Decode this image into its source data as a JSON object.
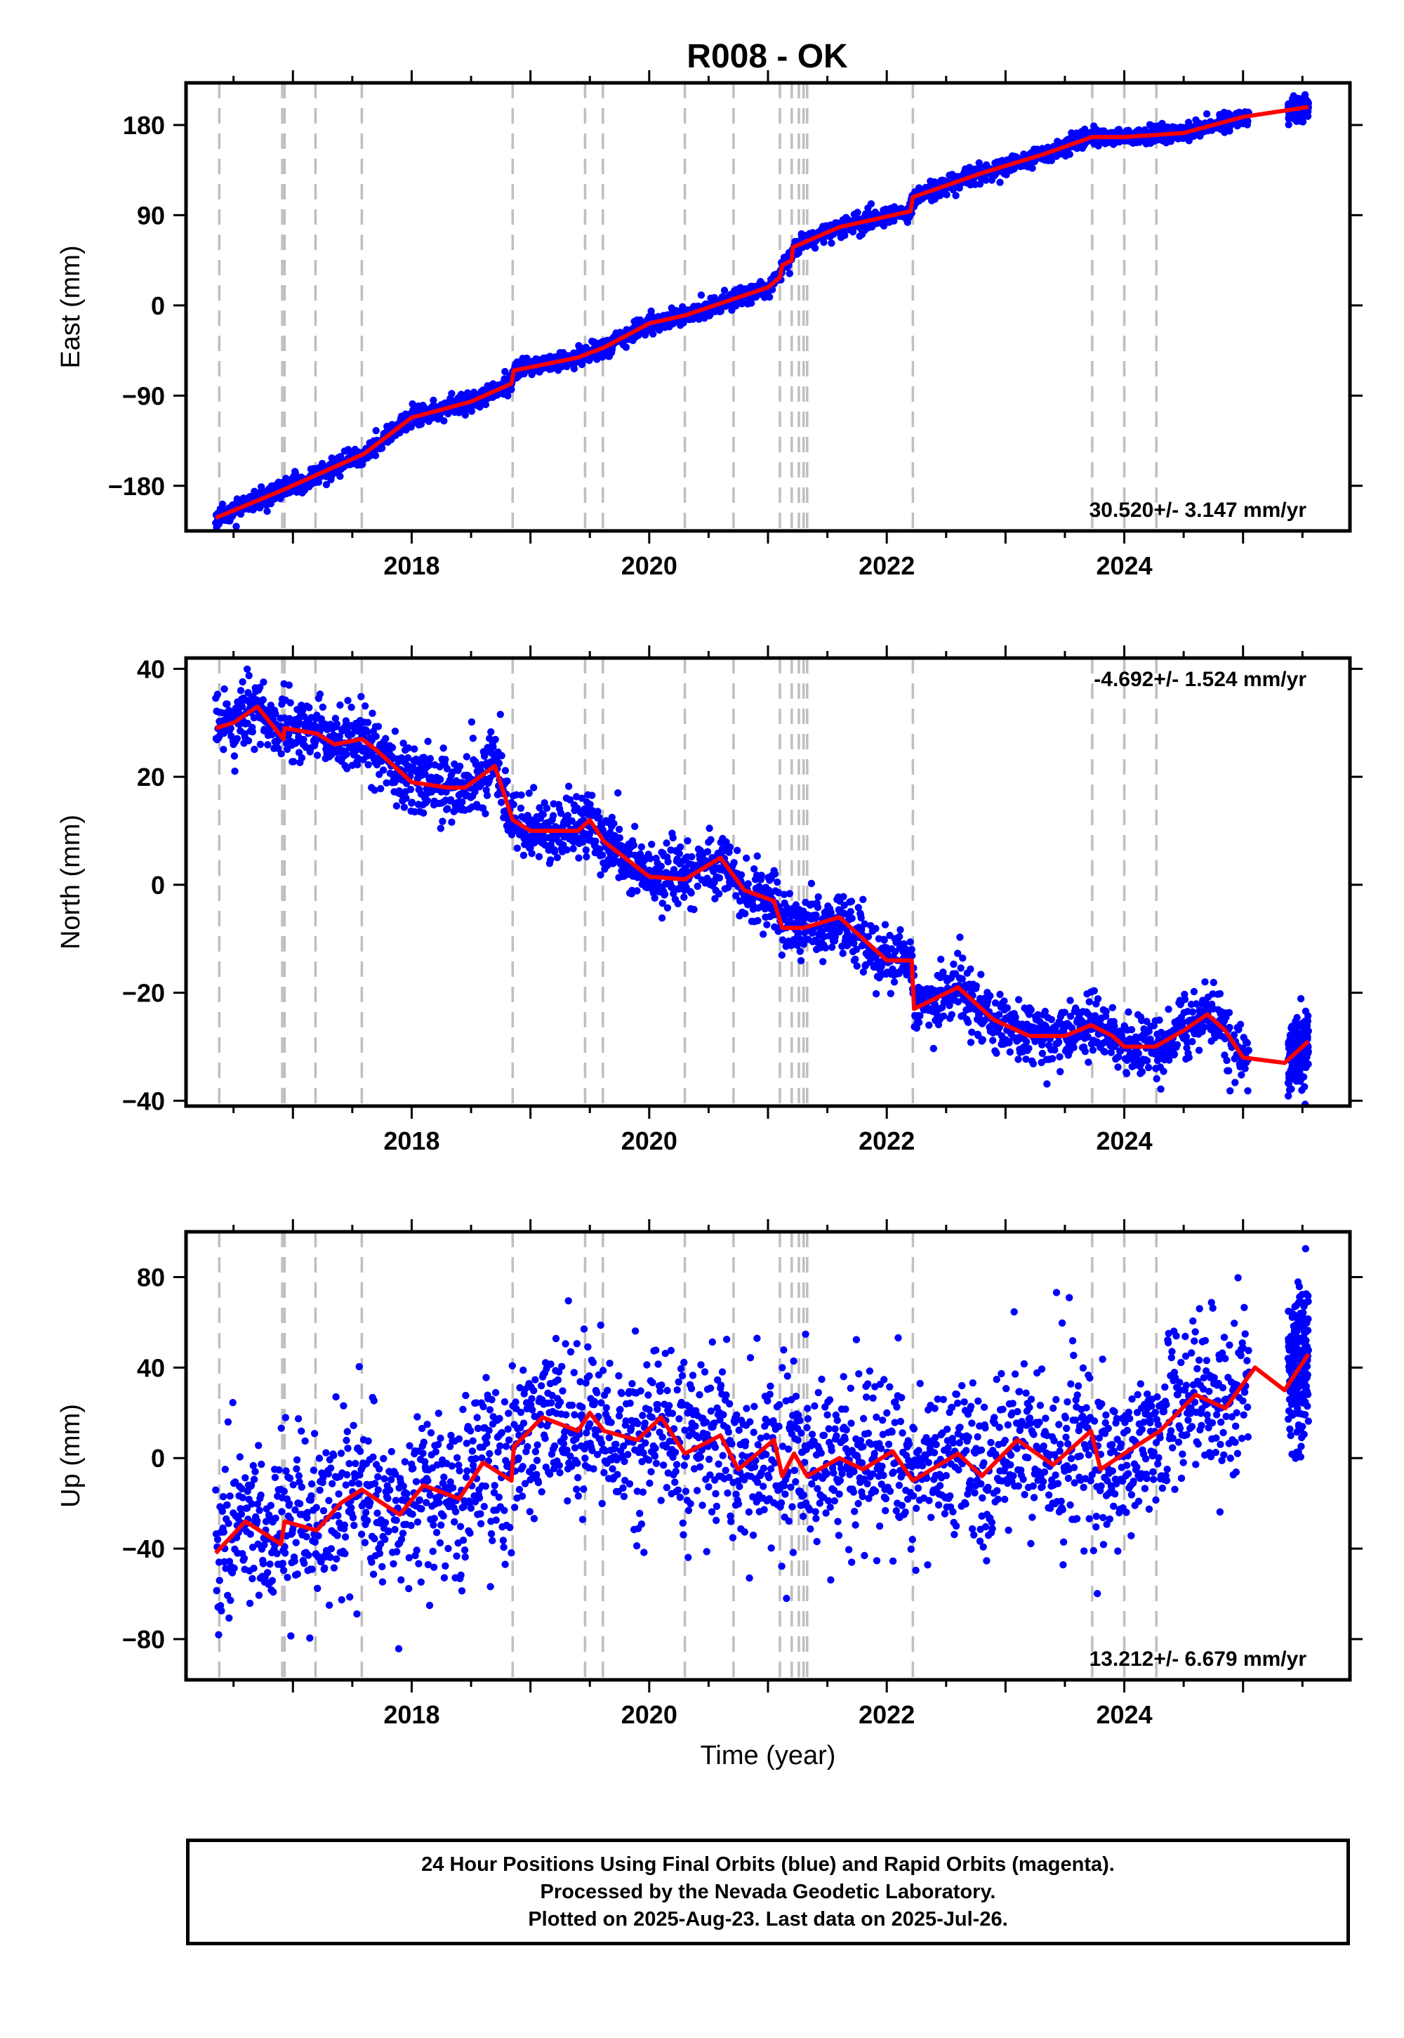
{
  "title": "R008 - OK",
  "footer": {
    "line1": "24 Hour Positions Using Final Orbits (blue) and Rapid Orbits (magenta).",
    "line2": "Processed by the Nevada Geodetic Laboratory.",
    "line3": "Plotted on 2025-Aug-23. Last data on 2025-Jul-26."
  },
  "colors": {
    "data": "#0000ff",
    "model": "#ff0000",
    "event_lines": "#bfbfbf"
  },
  "chart_data": [
    {
      "type": "scatter",
      "panel": "east",
      "ylabel": "East (mm)",
      "xlabel": "",
      "xlim": [
        2016.1,
        2025.9
      ],
      "ylim": [
        -225,
        222
      ],
      "yticks": [
        -180,
        -90,
        0,
        90,
        180
      ],
      "xticks": [
        2018,
        2020,
        2022,
        2024
      ],
      "rate": "30.520+/- 3.147 mm/yr",
      "event_lines": [
        2016.38,
        2016.91,
        2016.93,
        2017.19,
        2017.58,
        2018.85,
        2019.46,
        2019.61,
        2020.3,
        2020.71,
        2021.1,
        2021.2,
        2021.26,
        2021.3,
        2021.33,
        2022.22,
        2023.73,
        2024.0,
        2024.27
      ],
      "model_line": {
        "x": [
          2016.35,
          2016.9,
          2017.6,
          2018.0,
          2018.5,
          2018.84,
          2018.86,
          2019.4,
          2019.62,
          2020.0,
          2020.3,
          2021.0,
          2021.1,
          2021.12,
          2021.2,
          2021.21,
          2021.6,
          2022.2,
          2022.22,
          2022.8,
          2023.3,
          2023.73,
          2024.0,
          2024.5,
          2025.0,
          2025.55
        ],
        "y": [
          -212,
          -185,
          -148,
          -112,
          -96,
          -78,
          -65,
          -52,
          -42,
          -18,
          -10,
          18,
          28,
          40,
          45,
          58,
          78,
          94,
          108,
          132,
          150,
          168,
          168,
          172,
          188,
          198
        ]
      },
      "series": [
        {
          "x": [
            2016.35,
            2016.9,
            2017.6,
            2018.0,
            2018.5,
            2018.84,
            2018.86,
            2019.4,
            2019.62,
            2020.0,
            2020.3,
            2021.0,
            2021.1,
            2021.12,
            2021.2,
            2021.21,
            2021.6,
            2022.2,
            2022.22,
            2022.8,
            2023.3,
            2023.73,
            2024.0,
            2024.5,
            2025.0,
            2025.55
          ],
          "y": [
            -212,
            -185,
            -148,
            -112,
            -96,
            -78,
            -65,
            -52,
            -42,
            -18,
            -10,
            18,
            28,
            40,
            45,
            58,
            78,
            94,
            108,
            132,
            150,
            168,
            168,
            172,
            188,
            198
          ],
          "spread": 4.5,
          "gaps": [
            [
              2025.05,
              2025.38
            ]
          ],
          "count": 2400,
          "seed": 11
        }
      ]
    },
    {
      "type": "scatter",
      "panel": "north",
      "ylabel": "North (mm)",
      "xlabel": "",
      "xlim": [
        2016.1,
        2025.9
      ],
      "ylim": [
        -41,
        42
      ],
      "yticks": [
        -40,
        -20,
        0,
        20,
        40
      ],
      "xticks": [
        2018,
        2020,
        2022,
        2024
      ],
      "rate": "-4.692+/- 1.524 mm/yr",
      "event_lines": [
        2016.38,
        2016.91,
        2016.93,
        2017.19,
        2017.58,
        2018.85,
        2019.46,
        2019.61,
        2020.3,
        2020.71,
        2021.1,
        2021.2,
        2021.26,
        2021.3,
        2021.33,
        2022.22,
        2023.73,
        2024.0,
        2024.27
      ],
      "model_line": {
        "x": [
          2016.35,
          2016.5,
          2016.7,
          2016.92,
          2016.93,
          2017.2,
          2017.35,
          2017.58,
          2017.7,
          2018.0,
          2018.3,
          2018.45,
          2018.7,
          2018.85,
          2019.0,
          2019.4,
          2019.5,
          2019.62,
          2020.0,
          2020.3,
          2020.6,
          2020.8,
          2021.05,
          2021.12,
          2021.3,
          2021.6,
          2021.8,
          2022.0,
          2022.21,
          2022.23,
          2022.6,
          2022.9,
          2023.2,
          2023.5,
          2023.72,
          2023.9,
          2024.0,
          2024.26,
          2024.5,
          2024.7,
          2024.85,
          2025.0,
          2025.35,
          2025.55
        ],
        "y": [
          29,
          30,
          33,
          27,
          29,
          28,
          26,
          27,
          25,
          19,
          18,
          18,
          22,
          12,
          10,
          10,
          12,
          8,
          1.5,
          1,
          5,
          -1,
          -3,
          -8,
          -8,
          -6,
          -10,
          -14,
          -14,
          -23,
          -19,
          -25,
          -28,
          -28,
          -26,
          -28,
          -30,
          -30,
          -27,
          -24,
          -27,
          -32,
          -33,
          -29
        ]
      },
      "series": [
        {
          "x": [
            2016.35,
            2016.5,
            2016.7,
            2016.92,
            2016.93,
            2017.2,
            2017.35,
            2017.58,
            2017.7,
            2018.0,
            2018.3,
            2018.45,
            2018.7,
            2018.85,
            2019.0,
            2019.4,
            2019.5,
            2019.62,
            2020.0,
            2020.3,
            2020.6,
            2020.8,
            2021.05,
            2021.12,
            2021.3,
            2021.6,
            2021.8,
            2022.0,
            2022.21,
            2022.23,
            2022.6,
            2022.9,
            2023.2,
            2023.5,
            2023.72,
            2023.9,
            2024.0,
            2024.26,
            2024.5,
            2024.7,
            2024.85,
            2025.0,
            2025.35,
            2025.55
          ],
          "y": [
            29,
            30,
            33,
            27,
            29,
            28,
            26,
            27,
            25,
            19,
            18,
            18,
            22,
            12,
            10,
            10,
            12,
            8,
            1.5,
            1,
            5,
            -1,
            -3,
            -8,
            -8,
            -6,
            -10,
            -14,
            -14,
            -23,
            -19,
            -25,
            -28,
            -28,
            -26,
            -28,
            -30,
            -30,
            -27,
            -24,
            -27,
            -32,
            -33,
            -29
          ],
          "spread": 2.8,
          "gaps": [
            [
              2025.05,
              2025.38
            ]
          ],
          "count": 2400,
          "seed": 23
        }
      ]
    },
    {
      "type": "scatter",
      "panel": "up",
      "ylabel": "Up (mm)",
      "xlabel": "Time (year)",
      "xlim": [
        2016.1,
        2025.9
      ],
      "ylim": [
        -98,
        100
      ],
      "yticks": [
        -80,
        -40,
        0,
        40,
        80
      ],
      "xticks": [
        2018,
        2020,
        2022,
        2024
      ],
      "rate": "13.212+/- 6.679 mm/yr",
      "event_lines": [
        2016.38,
        2016.91,
        2016.93,
        2017.19,
        2017.58,
        2018.85,
        2019.46,
        2019.61,
        2020.3,
        2020.71,
        2021.1,
        2021.2,
        2021.26,
        2021.3,
        2021.33,
        2022.22,
        2023.73,
        2024.0,
        2024.27
      ],
      "model_line": {
        "x": [
          2016.35,
          2016.6,
          2016.9,
          2016.93,
          2017.2,
          2017.4,
          2017.58,
          2017.9,
          2018.1,
          2018.4,
          2018.6,
          2018.84,
          2018.86,
          2019.1,
          2019.4,
          2019.5,
          2019.62,
          2019.9,
          2020.1,
          2020.3,
          2020.6,
          2020.75,
          2021.05,
          2021.12,
          2021.22,
          2021.33,
          2021.6,
          2021.8,
          2022.05,
          2022.22,
          2022.6,
          2022.8,
          2023.1,
          2023.4,
          2023.72,
          2023.8,
          2024.0,
          2024.3,
          2024.6,
          2024.85,
          2025.1,
          2025.35,
          2025.55
        ],
        "y": [
          -42,
          -28,
          -38,
          -28,
          -32,
          -20,
          -14,
          -25,
          -12,
          -18,
          -2,
          -10,
          5,
          18,
          12,
          20,
          12,
          8,
          18,
          2,
          10,
          -5,
          8,
          -8,
          2,
          -8,
          0,
          -5,
          3,
          -10,
          2,
          -8,
          8,
          -3,
          12,
          -5,
          2,
          12,
          28,
          22,
          40,
          30,
          46
        ]
      },
      "series": [
        {
          "x": [
            2016.35,
            2016.6,
            2016.9,
            2016.93,
            2017.2,
            2017.4,
            2017.58,
            2017.9,
            2018.1,
            2018.4,
            2018.6,
            2018.84,
            2018.86,
            2019.1,
            2019.4,
            2019.5,
            2019.62,
            2019.9,
            2020.1,
            2020.3,
            2020.6,
            2020.75,
            2021.05,
            2021.12,
            2021.22,
            2021.33,
            2021.6,
            2021.8,
            2022.05,
            2022.22,
            2022.6,
            2022.8,
            2023.1,
            2023.4,
            2023.72,
            2023.8,
            2024.0,
            2024.3,
            2024.6,
            2024.85,
            2025.1,
            2025.35,
            2025.55
          ],
          "y": [
            -42,
            -28,
            -38,
            -28,
            -32,
            -20,
            -14,
            -25,
            -12,
            -18,
            -2,
            -10,
            5,
            18,
            12,
            20,
            12,
            8,
            18,
            2,
            10,
            -5,
            8,
            -8,
            2,
            -8,
            0,
            -5,
            3,
            -10,
            2,
            -8,
            8,
            -3,
            12,
            -5,
            2,
            12,
            28,
            22,
            40,
            30,
            46
          ],
          "spread": 18,
          "gaps": [
            [
              2025.05,
              2025.38
            ]
          ],
          "count": 2300,
          "seed": 37
        }
      ]
    }
  ]
}
